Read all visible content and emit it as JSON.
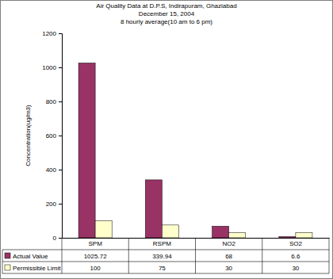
{
  "chart_data": {
    "type": "bar",
    "title": "Air Quality Data at D.P.S, Indirapuram, Ghaziabad",
    "subtitle": [
      "December 15, 2004",
      "8 hourly average(10 am to 6 pm)"
    ],
    "y_label": "Concentration(ug/m3)",
    "categories": [
      "SPM",
      "RSPM",
      "NO2",
      "SO2"
    ],
    "series": [
      {
        "name": "Actual Value",
        "color": "#993366",
        "values": [
          1025.72,
          339.94,
          68,
          6.6
        ]
      },
      {
        "name": "Permissible Limit",
        "color": "#ffffcc",
        "values": [
          100,
          75,
          30,
          30
        ]
      }
    ],
    "ylim": [
      0,
      1200
    ],
    "yticks": [
      0,
      200,
      400,
      600,
      800,
      1000,
      1200
    ],
    "grid": false,
    "legend": "bottom"
  }
}
